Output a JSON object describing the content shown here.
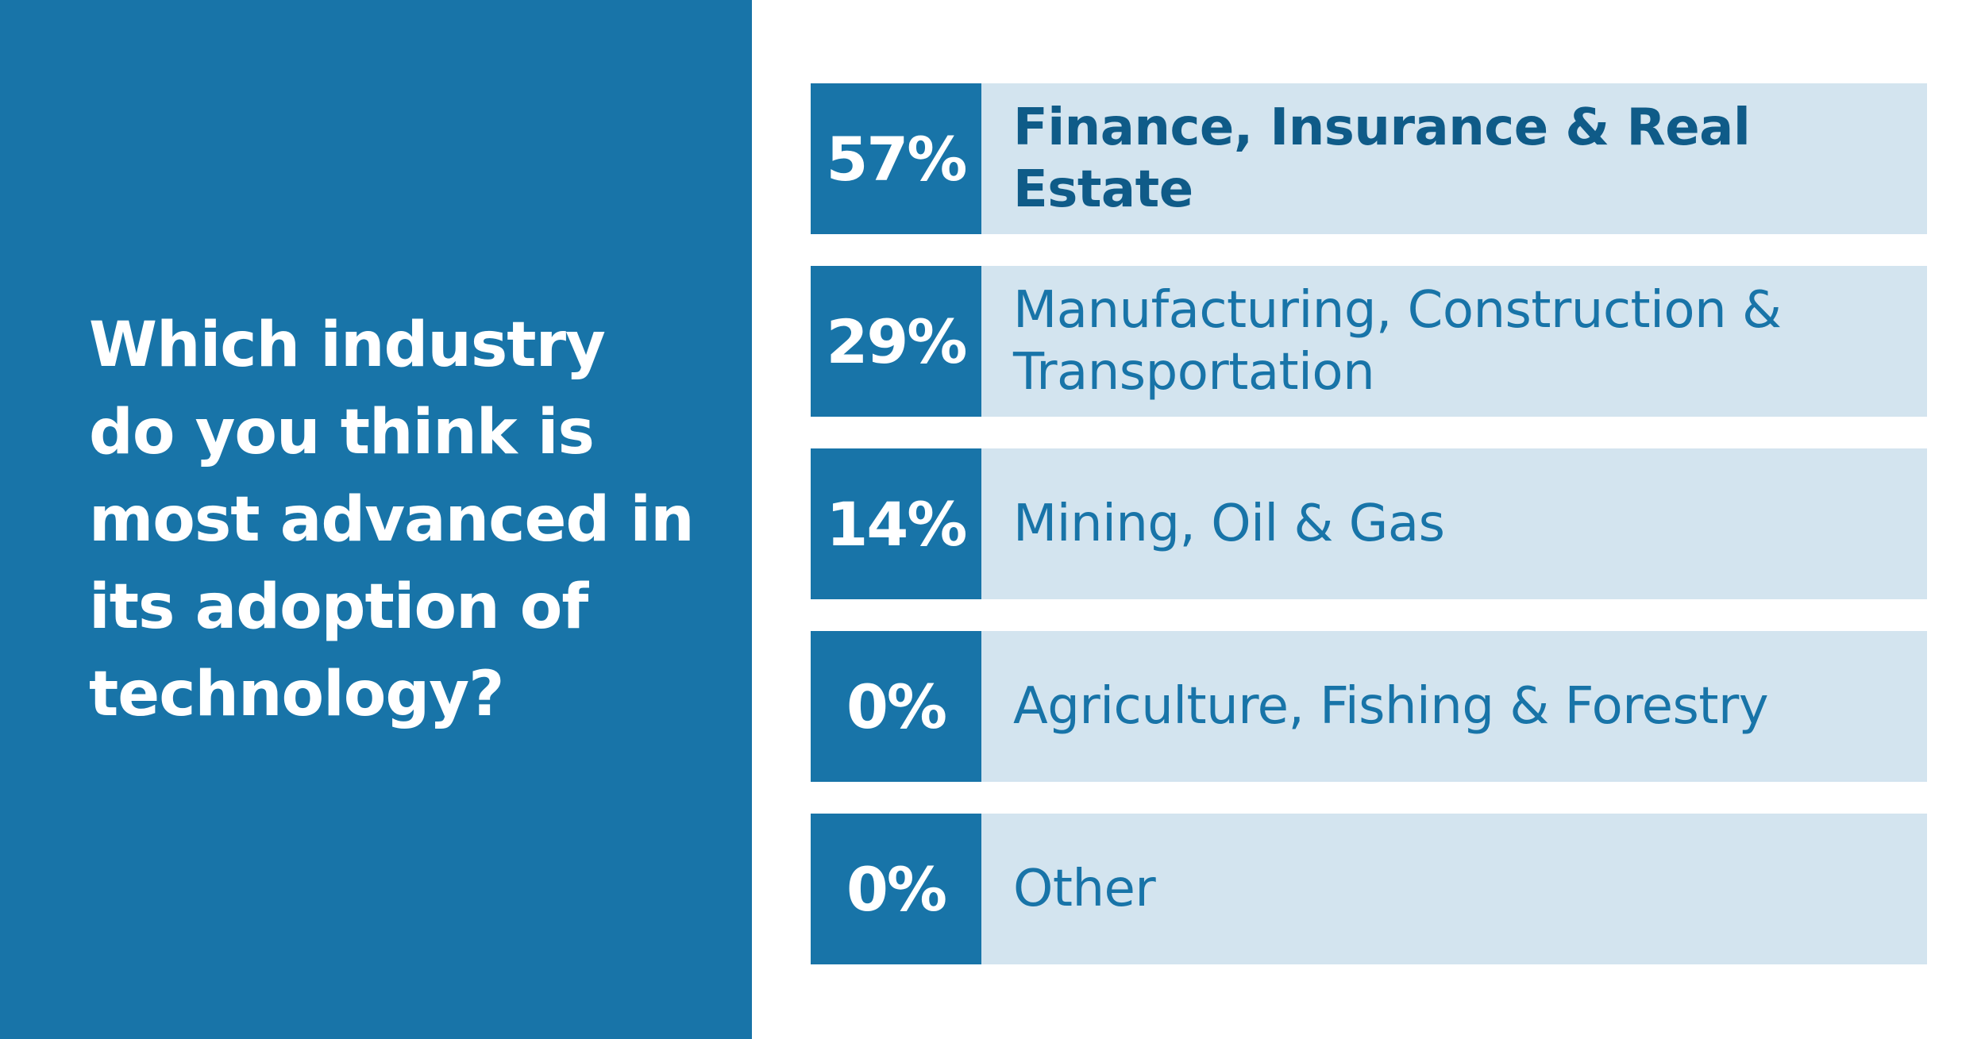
{
  "question": "Which industry do you think is most advanced in its adoption of technology?",
  "colors": {
    "accent": "#1874a8",
    "bar_background": "#d3e4ef",
    "text_on_accent": "#ffffff"
  },
  "chart_data": {
    "type": "table",
    "title": "Which industry do you think is most advanced in its adoption of technology?",
    "rows": [
      {
        "percent_label": "57%",
        "value": 57,
        "category": "Finance, Insurance & Real Estate"
      },
      {
        "percent_label": "29%",
        "value": 29,
        "category": "Manufacturing, Construction & Transportation"
      },
      {
        "percent_label": "14%",
        "value": 14,
        "category": "Mining, Oil & Gas"
      },
      {
        "percent_label": "0%",
        "value": 0,
        "category": "Agriculture, Fishing & Forestry"
      },
      {
        "percent_label": "0%",
        "value": 0,
        "category": "Other"
      }
    ]
  }
}
